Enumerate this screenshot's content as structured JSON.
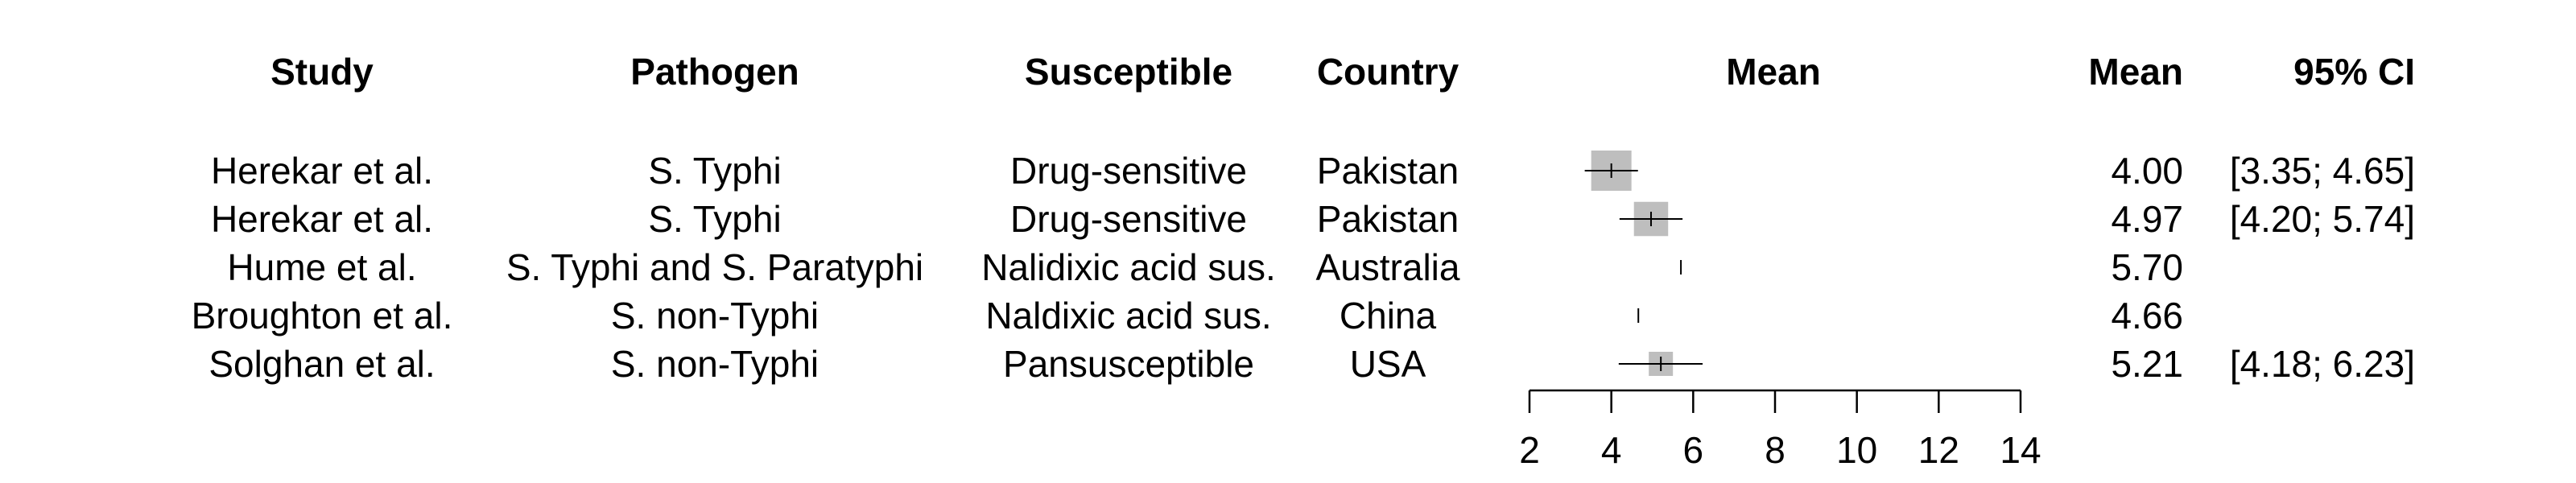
{
  "headers": {
    "study": "Study",
    "pathogen": "Pathogen",
    "susceptible": "Susceptible",
    "country": "Country",
    "mean_plot": "Mean",
    "mean": "Mean",
    "ci": "95% CI"
  },
  "colors": {
    "box": "#bebebe",
    "line": "#000000"
  },
  "chart_data": {
    "type": "forest",
    "xlim": [
      2,
      14
    ],
    "xticks": [
      2,
      4,
      6,
      8,
      10,
      12,
      14
    ],
    "xlabel": "",
    "rows": [
      {
        "study": "Herekar et al.",
        "pathogen": "S. Typhi",
        "susceptible": "Drug-sensitive",
        "country": "Pakistan",
        "mean": 4.0,
        "lower": 3.35,
        "upper": 4.65,
        "mean_label": "4.00",
        "ci_label": "[3.35; 4.65]",
        "box": 1.0
      },
      {
        "study": "Herekar et al.",
        "pathogen": "S. Typhi",
        "susceptible": "Drug-sensitive",
        "country": "Pakistan",
        "mean": 4.97,
        "lower": 4.2,
        "upper": 5.74,
        "mean_label": "4.97",
        "ci_label": "[4.20; 5.74]",
        "box": 0.85
      },
      {
        "study": "Hume et al.",
        "pathogen": "S. Typhi and S. Paratyphi",
        "susceptible": "Nalidixic acid sus.",
        "country": "Australia",
        "mean": 5.7,
        "lower": null,
        "upper": null,
        "mean_label": "5.70",
        "ci_label": "",
        "box": 0
      },
      {
        "study": "Broughton et al.",
        "pathogen": "S. non-Typhi",
        "susceptible": "Naldixic acid sus.",
        "country": "China",
        "mean": 4.66,
        "lower": null,
        "upper": null,
        "mean_label": "4.66",
        "ci_label": "",
        "box": 0
      },
      {
        "study": "Solghan et al.",
        "pathogen": "S. non-Typhi",
        "susceptible": "Pansusceptible",
        "country": "USA",
        "mean": 5.21,
        "lower": 4.18,
        "upper": 6.23,
        "mean_label": "5.21",
        "ci_label": "[4.18; 6.23]",
        "box": 0.6
      }
    ]
  }
}
